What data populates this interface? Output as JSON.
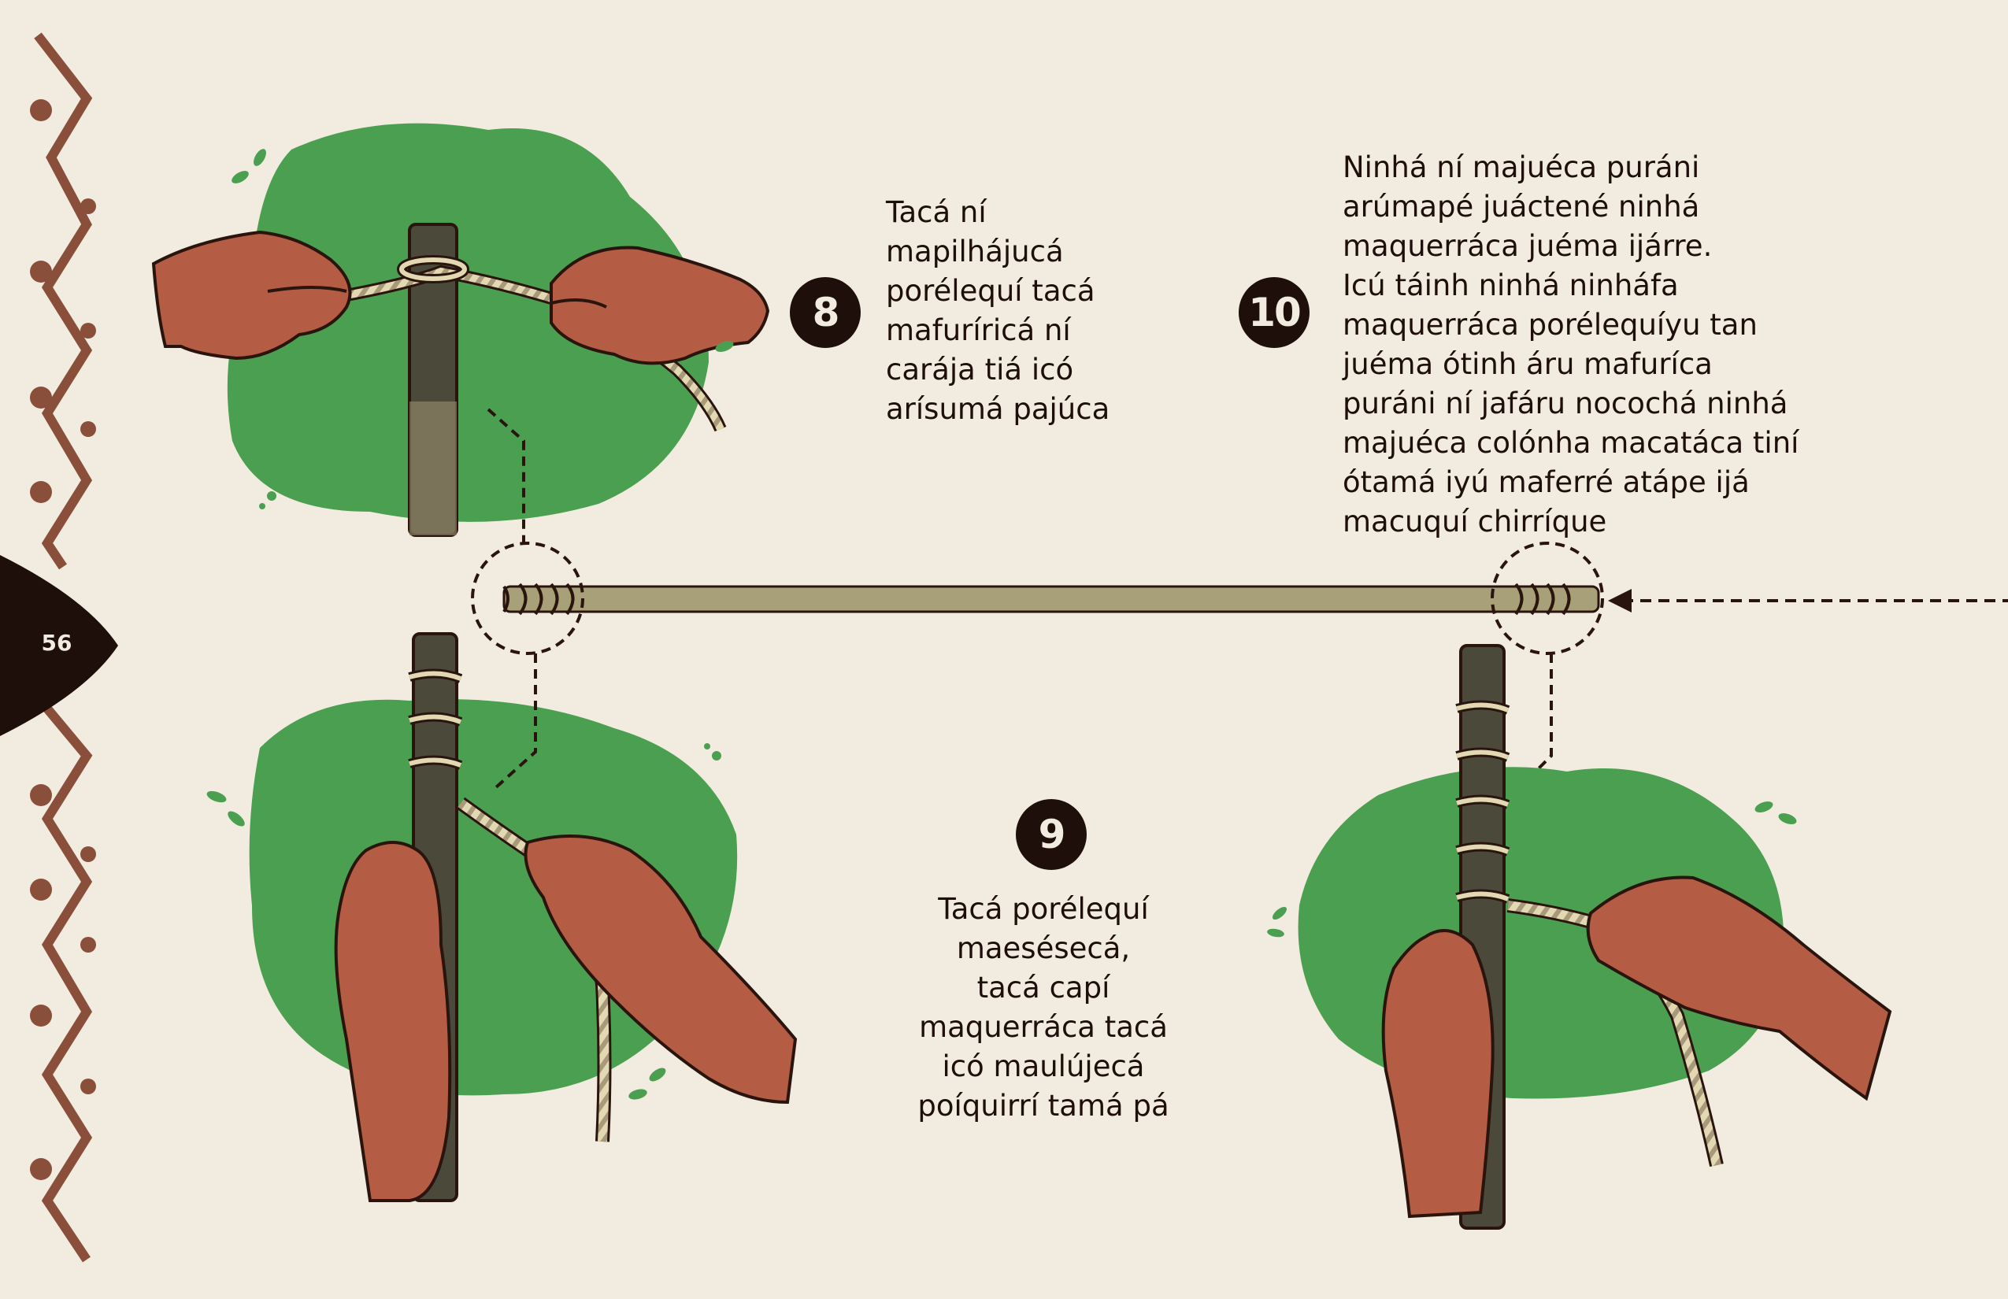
{
  "page": {
    "number": "56"
  },
  "steps": [
    {
      "number": "8",
      "text": "Tacá ní\nmapilhájucá\nporélequí tacá\nmafuríricá ní\ncarája tiá icó\narísumá pajúca"
    },
    {
      "number": "9",
      "text": "Tacá porélequí\nmaesésecá,\ntacá capí\nmaquerráca tacá\nicó maulújecá\npoíquirrí tamá pá"
    },
    {
      "number": "10",
      "text": "Ninhá ní majuéca puráni\narúmapé juáctené ninhá\nmaquerráca juéma ijárre.\nIcú táinh ninhá ninháfa\nmaquerráca porélequíyu tan\njuéma ótinh áru mafuríca\npuráni ní jafáru nocochá ninhá\nmajuéca colónha macatáca tiní\nótamá iyú maferré atápe ijá\nmacuquí chirríque"
    }
  ],
  "colors": {
    "background": "#f1ecdf",
    "blob_green": "#4a9f50",
    "skin": "#b45d44",
    "skin_outline": "#2a140e",
    "stick": "#4b4a3a",
    "rope": "#d9cfa8",
    "badge": "#1e0f0a",
    "border_pattern": "#8a4f3b"
  },
  "icons": [
    "leaf-sprig-icon",
    "arrow-left-icon",
    "zigzag-border-icon"
  ]
}
